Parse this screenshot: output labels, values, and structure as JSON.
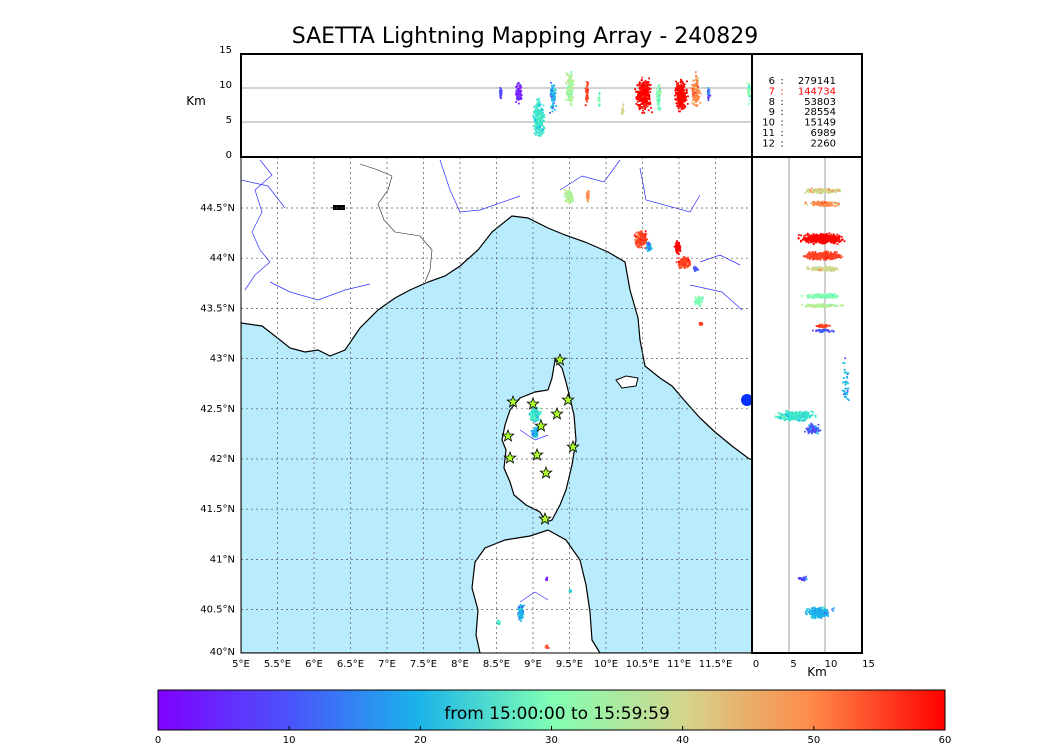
{
  "title": "SAETTA Lightning Mapping Array - 240829",
  "top_panel": {
    "ylabel": "Km",
    "yticks": [
      "15",
      "10",
      "5",
      "0"
    ]
  },
  "right_panel": {
    "xlabel": "Km",
    "xticks": [
      "0",
      "5",
      "10",
      "15"
    ]
  },
  "map": {
    "xticks": [
      "5°E",
      "5.5°E",
      "6°E",
      "6.5°E",
      "7°E",
      "7.5°E",
      "8°E",
      "8.5°E",
      "9°E",
      "9.5°E",
      "10°E",
      "10.5°E",
      "11°E",
      "11.5°E"
    ],
    "yticks": [
      "44.5°N",
      "44°N",
      "43.5°N",
      "43°N",
      "42.5°N",
      "42°N",
      "41.5°N",
      "41°N",
      "40.5°N",
      "40°N"
    ],
    "colors": {
      "sea": "#b8ecfc",
      "land": "#ffffff",
      "river": "#3030ff",
      "coast": "#000000",
      "grid": "#555555",
      "star": "#adff2f"
    }
  },
  "station_counts": [
    {
      "stations": "6",
      "count": "279141",
      "highlight": false
    },
    {
      "stations": "7",
      "count": "144734",
      "highlight": true
    },
    {
      "stations": "8",
      "count": "53803",
      "highlight": false
    },
    {
      "stations": "9",
      "count": "28554",
      "highlight": false
    },
    {
      "stations": "10",
      "count": "15149",
      "highlight": false
    },
    {
      "stations": "11",
      "count": "6989",
      "highlight": false
    },
    {
      "stations": "12",
      "count": "2260",
      "highlight": false
    }
  ],
  "colorbar": {
    "label": "from 15:00:00 to 15:59:59",
    "ticks": [
      "0",
      "10",
      "20",
      "30",
      "40",
      "50",
      "60"
    ],
    "highlight_color": "#ff0000"
  }
}
